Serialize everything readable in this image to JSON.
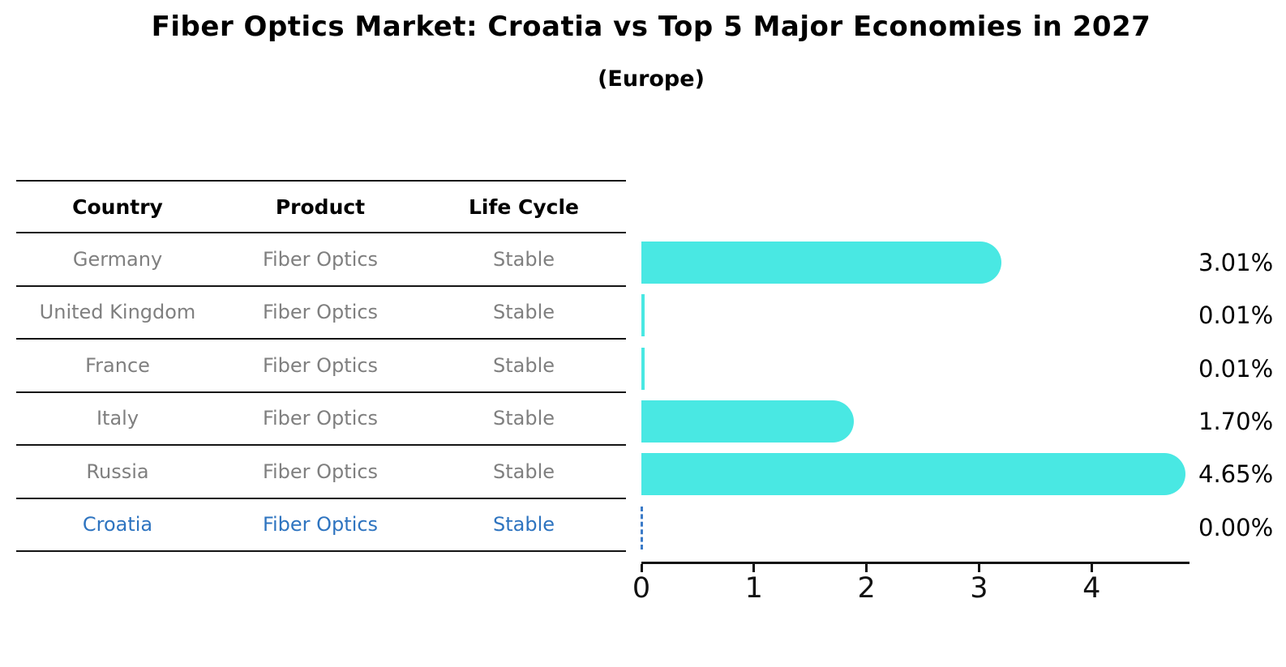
{
  "title": "Fiber Optics Market: Croatia vs Top 5 Major Economies in 2027",
  "subtitle": "(Europe)",
  "table": {
    "headers": [
      "Country",
      "Product",
      "Life Cycle"
    ],
    "rows": [
      {
        "country": "Germany",
        "product": "Fiber Optics",
        "life_cycle": "Stable",
        "highlight": false
      },
      {
        "country": "United Kingdom",
        "product": "Fiber Optics",
        "life_cycle": "Stable",
        "highlight": false
      },
      {
        "country": "France",
        "product": "Fiber Optics",
        "life_cycle": "Stable",
        "highlight": false
      },
      {
        "country": "Italy",
        "product": "Fiber Optics",
        "life_cycle": "Stable",
        "highlight": false
      },
      {
        "country": "Russia",
        "product": "Fiber Optics",
        "life_cycle": "Stable",
        "highlight": true
      }
    ],
    "highlight_row": {
      "country": "Croatia",
      "product": "Fiber Optics",
      "life_cycle": "Stable"
    }
  },
  "chart_data": {
    "type": "bar",
    "orientation": "horizontal",
    "title": "Fiber Optics Market: Croatia vs Top 5 Major Economies in 2027 (Europe)",
    "categories": [
      "Germany",
      "United Kingdom",
      "France",
      "Italy",
      "Russia",
      "Croatia"
    ],
    "values": [
      3.01,
      0.01,
      0.01,
      1.7,
      4.65,
      0.0
    ],
    "value_labels": [
      "3.01%",
      "0.01%",
      "0.01%",
      "1.70%",
      "4.65%",
      "0.00%"
    ],
    "x_ticks": [
      0,
      1,
      2,
      3,
      4
    ],
    "x_tick_labels": [
      "0",
      "1",
      "2",
      "3",
      "4"
    ],
    "xlim": [
      0,
      4.87
    ],
    "xlabel": "",
    "ylabel": "",
    "grid": false,
    "legend_position": "none",
    "bar_color": "#49e8e3",
    "highlight_marker": "dashed-line-at-zero",
    "highlight_index": 5,
    "highlight_color": "#3b7bc8"
  },
  "colors": {
    "background": "#ffffff",
    "bar": "#49e8e3",
    "table_line": "#141414",
    "row_text": "#7f7f7f",
    "highlight_text": "#2e74c0",
    "axis": "#111111"
  }
}
